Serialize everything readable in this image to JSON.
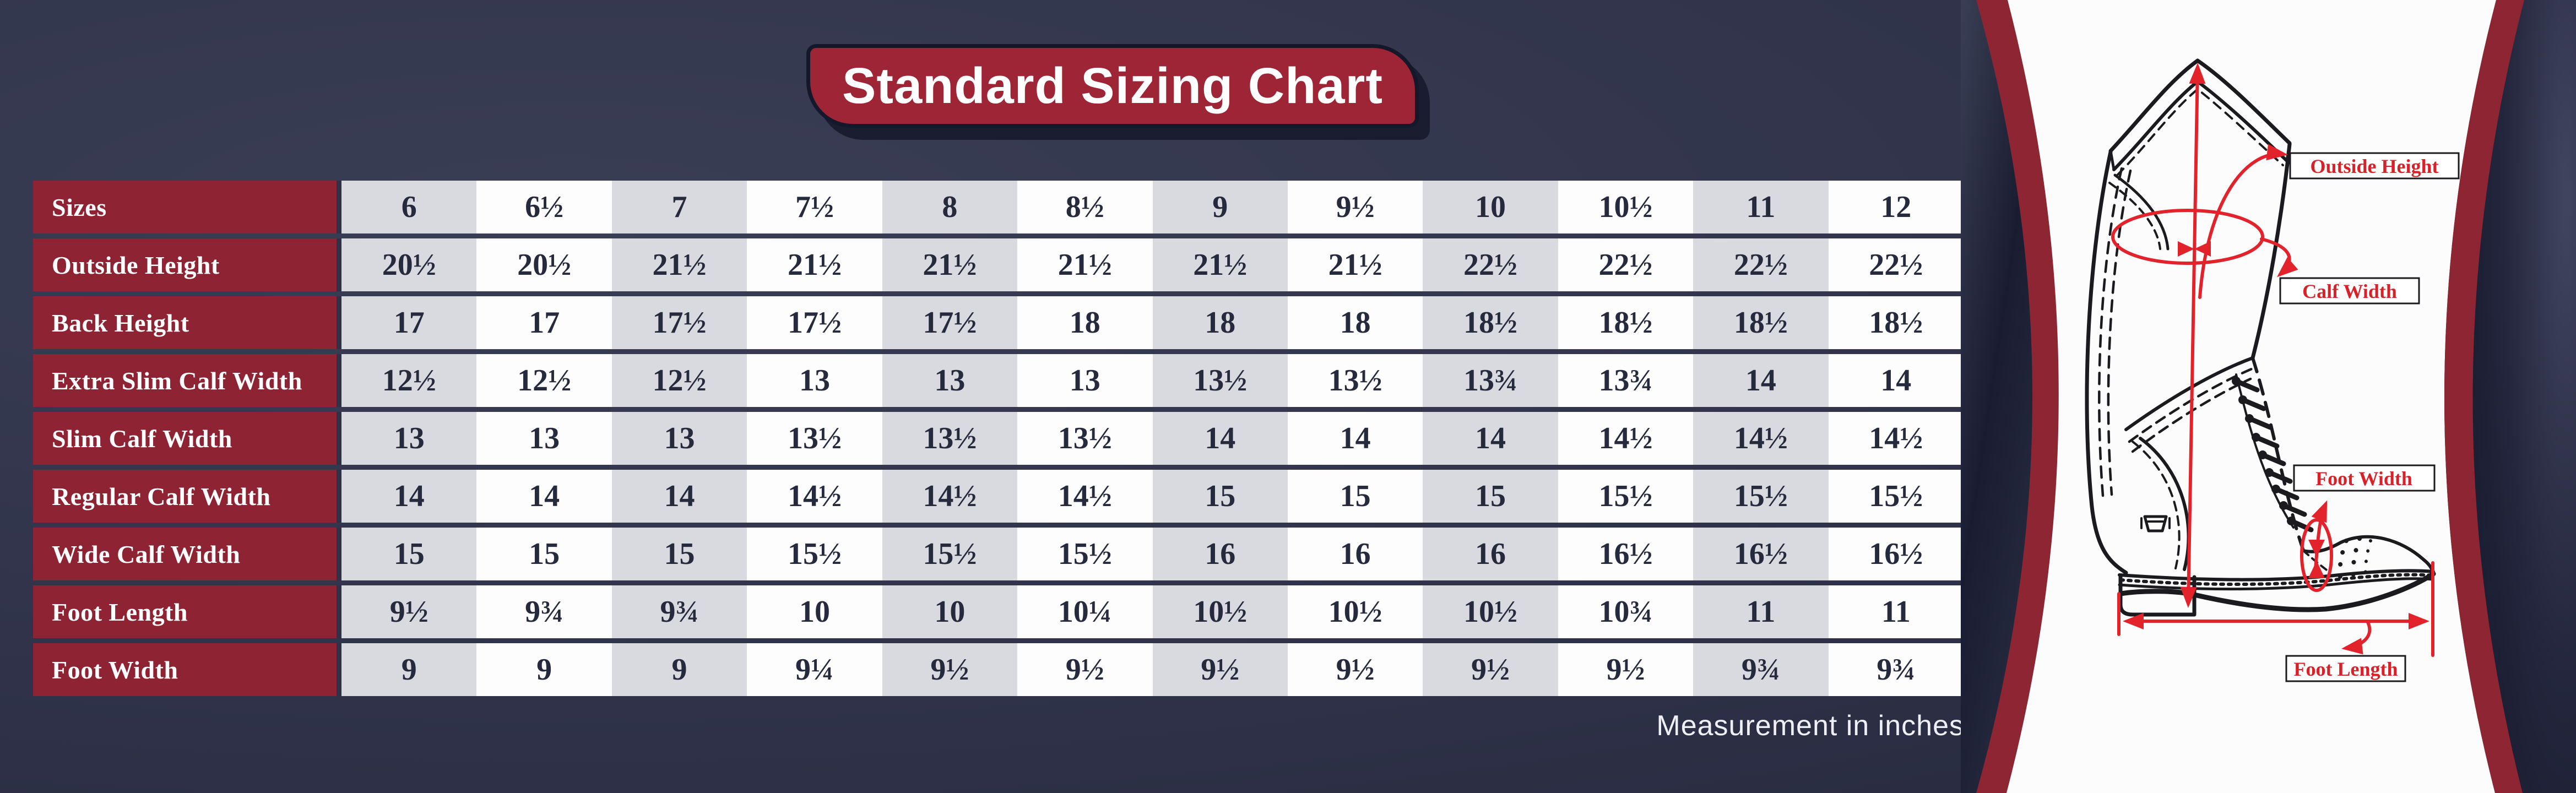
{
  "title": "Standard Sizing Chart",
  "note": "Measurement in inches",
  "chart_data": {
    "type": "table",
    "title": "Standard Sizing Chart",
    "units": "inches",
    "header_label": "Sizes",
    "columns": [
      "6",
      "6½",
      "7",
      "7½",
      "8",
      "8½",
      "9",
      "9½",
      "10",
      "10½",
      "11",
      "12"
    ],
    "rows": [
      {
        "label": "Sizes",
        "values": [
          "6",
          "6½",
          "7",
          "7½",
          "8",
          "8½",
          "9",
          "9½",
          "10",
          "10½",
          "11",
          "12"
        ]
      },
      {
        "label": "Outside Height",
        "values": [
          "20½",
          "20½",
          "21½",
          "21½",
          "21½",
          "21½",
          "21½",
          "21½",
          "22½",
          "22½",
          "22½",
          "22½"
        ]
      },
      {
        "label": "Back Height",
        "values": [
          "17",
          "17",
          "17½",
          "17½",
          "17½",
          "18",
          "18",
          "18",
          "18½",
          "18½",
          "18½",
          "18½"
        ]
      },
      {
        "label": "Extra Slim Calf Width",
        "values": [
          "12½",
          "12½",
          "12½",
          "13",
          "13",
          "13",
          "13½",
          "13½",
          "13¾",
          "13¾",
          "14",
          "14"
        ]
      },
      {
        "label": "Slim Calf Width",
        "values": [
          "13",
          "13",
          "13",
          "13½",
          "13½",
          "13½",
          "14",
          "14",
          "14",
          "14½",
          "14½",
          "14½"
        ]
      },
      {
        "label": "Regular Calf Width",
        "values": [
          "14",
          "14",
          "14",
          "14½",
          "14½",
          "14½",
          "15",
          "15",
          "15",
          "15½",
          "15½",
          "15½"
        ]
      },
      {
        "label": "Wide Calf Width",
        "values": [
          "15",
          "15",
          "15",
          "15½",
          "15½",
          "15½",
          "16",
          "16",
          "16",
          "16½",
          "16½",
          "16½"
        ]
      },
      {
        "label": "Foot Length",
        "values": [
          "9½",
          "9¾",
          "9¾",
          "10",
          "10",
          "10¼",
          "10½",
          "10½",
          "10½",
          "10¾",
          "11",
          "11"
        ]
      },
      {
        "label": "Foot Width",
        "values": [
          "9",
          "9",
          "9",
          "9¼",
          "9½",
          "9½",
          "9½",
          "9½",
          "9½",
          "9½",
          "9¾",
          "9¾"
        ]
      }
    ]
  },
  "boot": {
    "labels": [
      "Outside Height",
      "Calf Width",
      "Foot Width",
      "Foot Length"
    ]
  },
  "colors": {
    "maroon": "#8e2433",
    "banner_maroon": "#9d2535",
    "background_navy": "#2f3246",
    "cell_gray": "#d9d9e0",
    "cell_white": "#fdfdfe",
    "annotation_red": "#e2232b"
  }
}
